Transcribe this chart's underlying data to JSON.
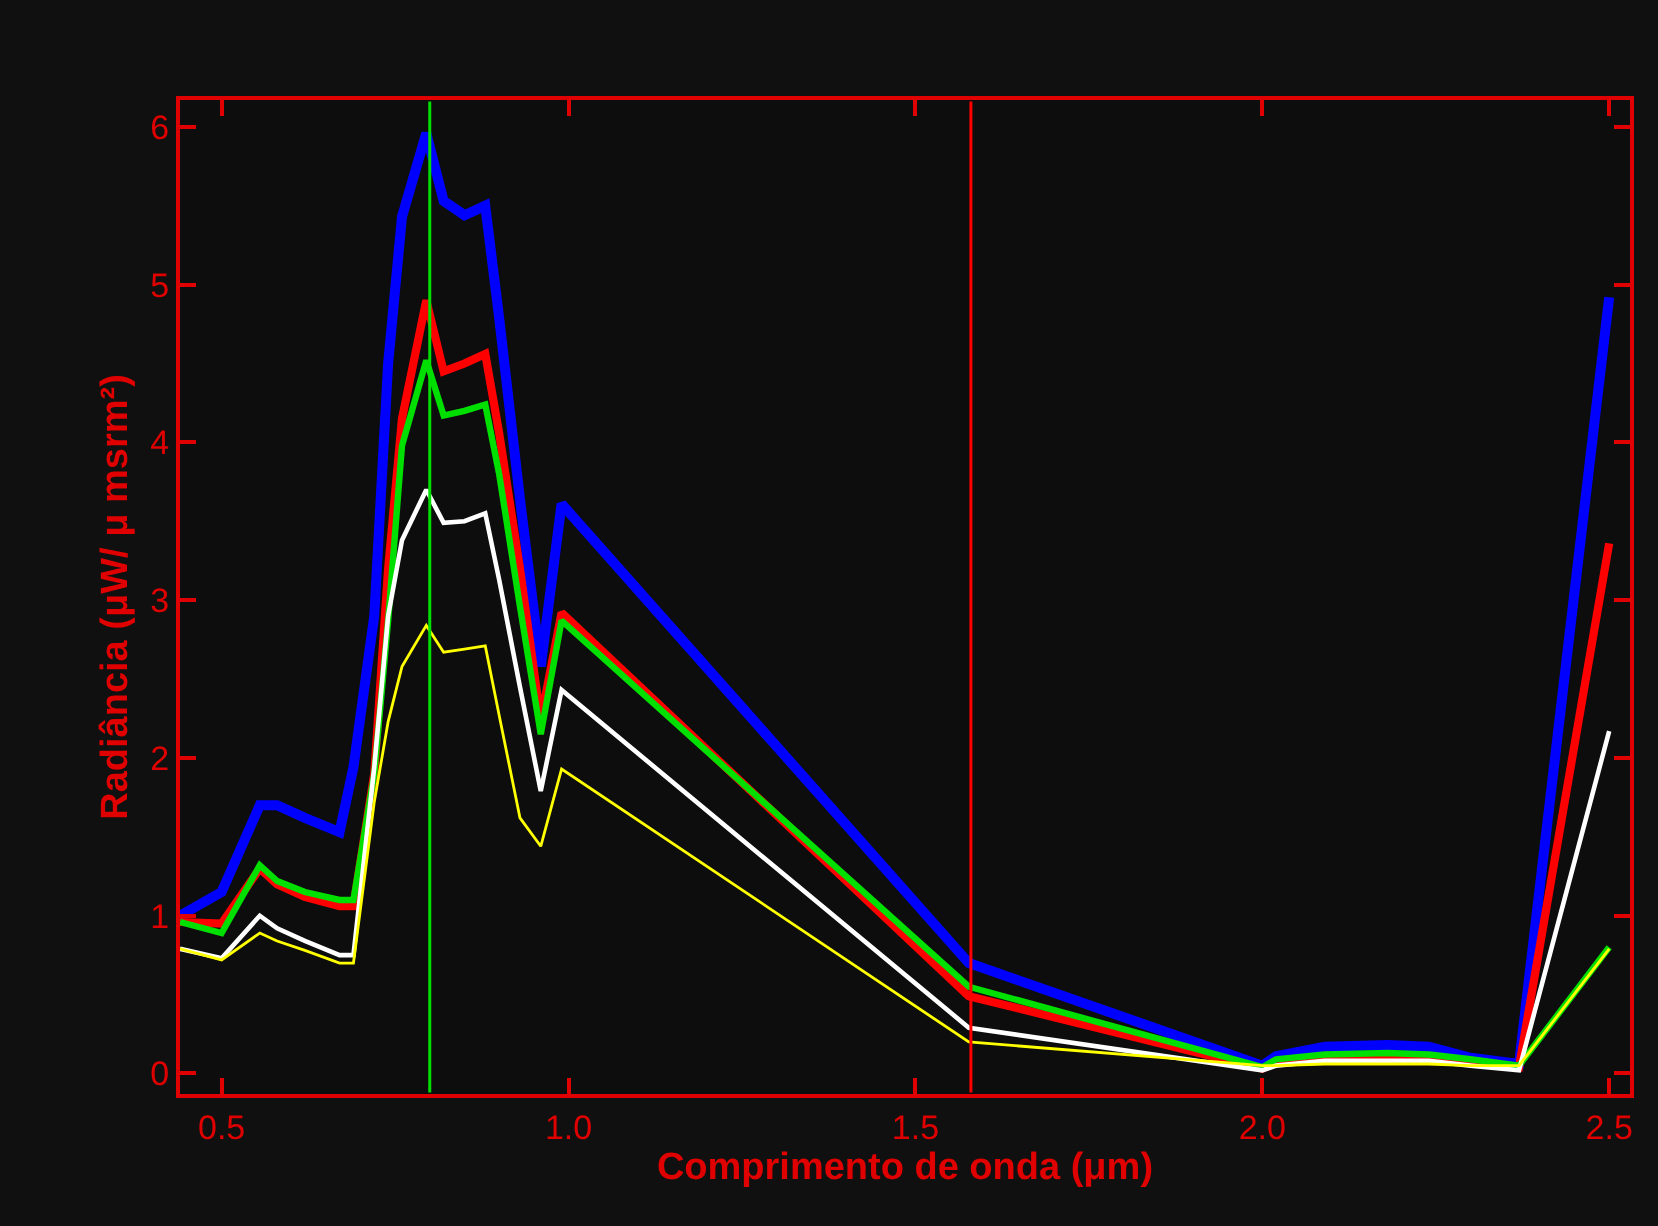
{
  "chart_data": {
    "type": "line",
    "xlabel": "Comprimento de onda (μm)",
    "ylabel": "Radiância (μW/ μ msrm²)",
    "x": [
      0.44,
      0.5,
      0.555,
      0.58,
      0.62,
      0.67,
      0.69,
      0.72,
      0.74,
      0.76,
      0.795,
      0.82,
      0.85,
      0.88,
      0.9,
      0.93,
      0.96,
      0.99,
      1.577,
      2.0,
      2.02,
      2.09,
      2.18,
      2.24,
      2.3,
      2.37,
      2.5
    ],
    "series": [
      {
        "color": "#0000ff",
        "values": [
          1.0,
          1.15,
          1.7,
          1.7,
          1.62,
          1.53,
          1.94,
          2.9,
          4.5,
          5.43,
          5.96,
          5.53,
          5.44,
          5.5,
          4.79,
          3.64,
          2.58,
          3.61,
          0.7,
          0.05,
          0.11,
          0.17,
          0.18,
          0.17,
          0.1,
          0.06,
          4.92
        ]
      },
      {
        "color": "#ff0000",
        "values": [
          0.96,
          0.95,
          1.3,
          1.2,
          1.12,
          1.06,
          1.06,
          1.9,
          3.2,
          4.15,
          4.9,
          4.45,
          4.5,
          4.56,
          4.06,
          3.2,
          2.24,
          2.92,
          0.49,
          0.03,
          0.07,
          0.1,
          0.1,
          0.1,
          0.07,
          0.04,
          3.36
        ]
      },
      {
        "color": "#00e000",
        "values": [
          0.96,
          0.89,
          1.32,
          1.22,
          1.15,
          1.1,
          1.1,
          1.9,
          2.87,
          3.98,
          4.52,
          4.17,
          4.2,
          4.24,
          3.8,
          2.96,
          2.15,
          2.87,
          0.55,
          0.04,
          0.09,
          0.12,
          0.13,
          0.12,
          0.09,
          0.05,
          0.8
        ]
      },
      {
        "color": "#ffffff",
        "values": [
          0.79,
          0.73,
          1.0,
          0.92,
          0.84,
          0.75,
          0.75,
          1.94,
          2.9,
          3.38,
          3.7,
          3.49,
          3.5,
          3.55,
          3.13,
          2.45,
          1.79,
          2.43,
          0.29,
          0.02,
          0.05,
          0.08,
          0.08,
          0.08,
          0.05,
          0.02,
          2.17
        ]
      },
      {
        "color": "#ffff00",
        "values": [
          0.79,
          0.72,
          0.89,
          0.84,
          0.78,
          0.7,
          0.7,
          1.72,
          2.23,
          2.58,
          2.84,
          2.67,
          2.69,
          2.71,
          2.27,
          1.62,
          1.44,
          1.93,
          0.2,
          0.05,
          0.05,
          0.06,
          0.06,
          0.06,
          0.05,
          0.05,
          0.79
        ]
      }
    ],
    "xlim": [
      0.44,
      2.53
    ],
    "ylim": [
      -0.13,
      6.17
    ],
    "xticks": [
      {
        "value": 0.5,
        "label": "0.5"
      },
      {
        "value": 1,
        "label": "1.0"
      },
      {
        "value": 1.5,
        "label": "1.5"
      },
      {
        "value": 2,
        "label": "2.0"
      },
      {
        "value": 2.5,
        "label": "2.5"
      }
    ],
    "yticks": [
      0,
      1,
      2,
      3,
      4,
      5,
      6
    ],
    "ref_lines": [
      {
        "axis": "x",
        "value": 0.8,
        "color": "#00e000"
      },
      {
        "axis": "x",
        "value": 1.58,
        "color": "#ff0000"
      }
    ],
    "grid": false,
    "marker": "none",
    "line_style": "solid"
  }
}
